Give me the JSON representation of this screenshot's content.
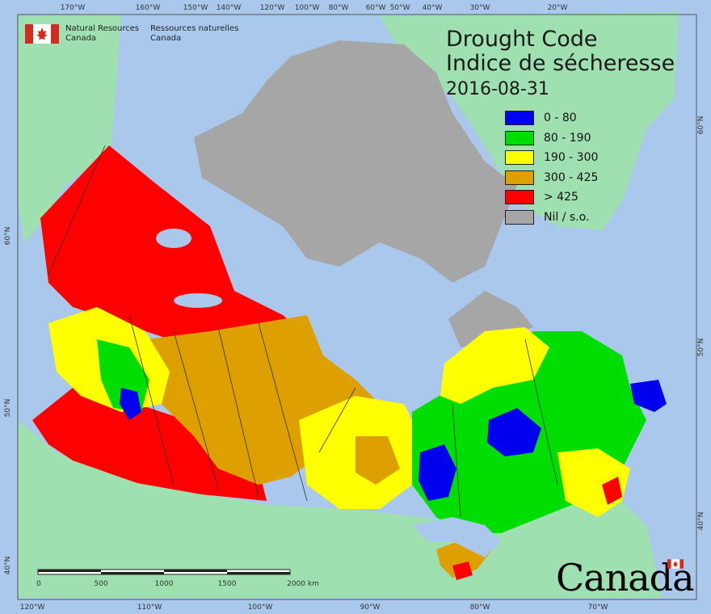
{
  "title": {
    "line1": "Drought Code",
    "line2": "Indice de sécheresse",
    "date": "2016-08-31"
  },
  "legend": [
    {
      "label": "0 - 80",
      "color": "#0000ee"
    },
    {
      "label": "80 - 190",
      "color": "#00dd00"
    },
    {
      "label": "190 - 300",
      "color": "#ffff00"
    },
    {
      "label": "300 - 425",
      "color": "#dda000"
    },
    {
      "label": "> 425",
      "color": "#ff0000"
    },
    {
      "label": "Nil / s.o.",
      "color": "#a6a6a6"
    }
  ],
  "agency": {
    "en_line1": "Natural Resources",
    "en_line2": "Canada",
    "fr_line1": "Ressources naturelles",
    "fr_line2": "Canada"
  },
  "wordmark": "Canada",
  "scale": {
    "labels": [
      "0",
      "500",
      "1000",
      "1500",
      "2000  km"
    ]
  },
  "graticule": {
    "top_labels": [
      "170°W",
      "160°W",
      "150°W",
      "140°W",
      "120°W",
      "100°W",
      "80°W",
      "60°W",
      "50°W",
      "40°W",
      "30°W",
      "20°W"
    ],
    "bottom_labels": [
      "120°W",
      "110°W",
      "100°W",
      "90°W",
      "80°W",
      "70°W"
    ],
    "left_labels": [
      "60°N",
      "50°N",
      "40°N"
    ],
    "right_labels": [
      "60°N",
      "50°N",
      "40°N"
    ]
  },
  "colors": {
    "ocean": "#aac8ec",
    "land_other": "#9ee0b0",
    "nil": "#a6a6a6",
    "lakes": "#aac8ec"
  }
}
